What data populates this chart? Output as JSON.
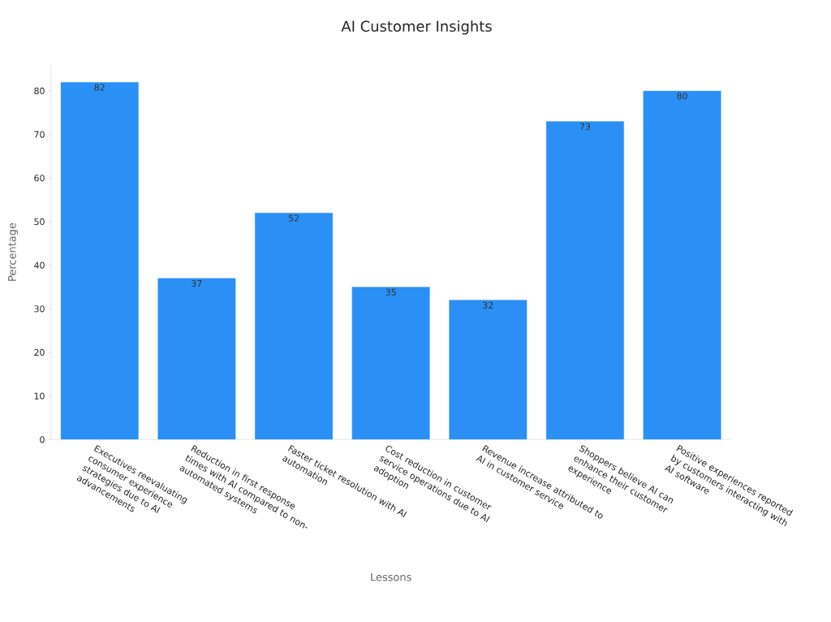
{
  "chart_data": {
    "type": "bar",
    "title": "AI Customer Insights",
    "xlabel": "Lessons",
    "ylabel": "Percentage",
    "categories": [
      "Executives reevaluating consumer experience strategies due to AI advancements",
      "Reduction in first response times with AI compared to non-automated systems",
      "Faster ticket resolution with AI automation",
      "Cost reduction in customer service operations due to AI adoption",
      "Revenue increase attributed to AI in customer service",
      "Shoppers believe AI can enhance their customer experience",
      "Positive experiences reported by customers interacting with AI software"
    ],
    "values": [
      82,
      37,
      52,
      35,
      32,
      73,
      80
    ],
    "color": "#2b90f5",
    "ylim": [
      0,
      86
    ],
    "yticks": [
      0,
      10,
      20,
      30,
      40,
      50,
      60,
      70,
      80
    ],
    "data_labels": true,
    "grid": false
  }
}
